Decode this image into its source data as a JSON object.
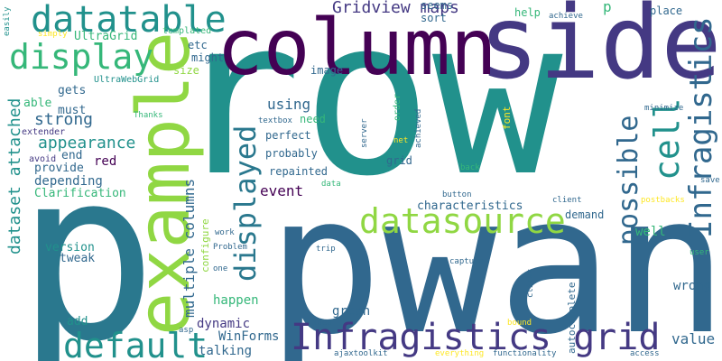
{
  "palette": {
    "dark_purple": "#440154",
    "indigo": "#443983",
    "blue": "#31688e",
    "teal": "#21918c",
    "green": "#35b779",
    "lime": "#90d743",
    "yellow": "#fde725"
  },
  "words": [
    {
      "key": "w-row",
      "text": "row",
      "color": "#21918c"
    },
    {
      "key": "w-p-big",
      "text": "p",
      "color": "#2a788e"
    },
    {
      "key": "w-pwant",
      "text": "pwant",
      "color": "#31688e"
    },
    {
      "key": "w-side",
      "text": "side",
      "color": "#443983"
    },
    {
      "key": "w-column",
      "text": "column",
      "color": "#440154"
    },
    {
      "key": "w-example",
      "text": "example",
      "color": "#90d743"
    },
    {
      "key": "w-datatable",
      "text": "datatable",
      "color": "#21918c"
    },
    {
      "key": "w-display",
      "text": "display",
      "color": "#35b779"
    },
    {
      "key": "w-default",
      "text": "default",
      "color": "#21918c"
    },
    {
      "key": "w-infragistics-grid",
      "text": "Infragistics grid",
      "color": "#443983"
    },
    {
      "key": "w-datasource",
      "text": "datasource",
      "color": "#90d743"
    },
    {
      "key": "w-infragistics-v",
      "text": "Infragistics",
      "color": "#31688e"
    },
    {
      "key": "w-cell",
      "text": "cell",
      "color": "#21918c"
    },
    {
      "key": "w-possible",
      "text": "possible",
      "color": "#31688e"
    },
    {
      "key": "w-displayed",
      "text": "displayed",
      "color": "#2a788e"
    },
    {
      "key": "w-multiple-columns",
      "text": "multiple columns",
      "color": "#31688e"
    },
    {
      "key": "w-dataset-attached",
      "text": "dataset attached",
      "color": "#21918c"
    },
    {
      "key": "w-gridview-maps",
      "text": "Gridview maps",
      "color": "#443983"
    },
    {
      "key": "w-appearance",
      "text": "appearance",
      "color": "#21918c"
    },
    {
      "key": "w-strong",
      "text": "strong",
      "color": "#31688e"
    },
    {
      "key": "w-event",
      "text": "event",
      "color": "#440154"
    },
    {
      "key": "w-using",
      "text": "using",
      "color": "#31688e"
    },
    {
      "key": "w-value",
      "text": "value",
      "color": "#31688e"
    },
    {
      "key": "w-wrong",
      "text": "wrong",
      "color": "#31688e"
    },
    {
      "key": "w-well",
      "text": "well",
      "color": "#35b779"
    },
    {
      "key": "w-demand",
      "text": "demand",
      "color": "#31688e"
    },
    {
      "key": "w-characteristics",
      "text": "characteristics",
      "color": "#31688e"
    },
    {
      "key": "w-green",
      "text": "green",
      "color": "#31688e"
    },
    {
      "key": "w-dynamic",
      "text": "dynamic",
      "color": "#443983"
    },
    {
      "key": "w-winforms",
      "text": "WinForms",
      "color": "#31688e"
    },
    {
      "key": "w-talking",
      "text": "talking",
      "color": "#31688e"
    },
    {
      "key": "w-happen",
      "text": "happen",
      "color": "#35b779"
    },
    {
      "key": "w-configure",
      "text": "configure",
      "color": "#90d743"
    },
    {
      "key": "w-version",
      "text": "version",
      "color": "#21918c"
    },
    {
      "key": "w-tweak",
      "text": "tweak",
      "color": "#31688e"
    },
    {
      "key": "w-add",
      "text": "add",
      "color": "#21918c"
    },
    {
      "key": "w-red",
      "text": "red",
      "color": "#440154"
    },
    {
      "key": "w-depending",
      "text": "depending",
      "color": "#31688e"
    },
    {
      "key": "w-clarification",
      "text": "Clarification",
      "color": "#35b779"
    },
    {
      "key": "w-provide",
      "text": "provide",
      "color": "#31688e"
    },
    {
      "key": "w-end",
      "text": "end",
      "color": "#31688e"
    },
    {
      "key": "w-avoid",
      "text": "avoid",
      "color": "#443983"
    },
    {
      "key": "w-extender",
      "text": "extender",
      "color": "#443983"
    },
    {
      "key": "w-must",
      "text": "must",
      "color": "#31688e"
    },
    {
      "key": "w-gets",
      "text": "gets",
      "color": "#31688e"
    },
    {
      "key": "w-able",
      "text": "able",
      "color": "#35b779"
    },
    {
      "key": "w-ultragrid",
      "text": "UltraGrid",
      "color": "#35b779"
    },
    {
      "key": "w-ultrawebgrid",
      "text": "UltraWebGrid",
      "color": "#21918c"
    },
    {
      "key": "w-simply",
      "text": "simply",
      "color": "#fde725"
    },
    {
      "key": "w-easily",
      "text": "easily",
      "color": "#21918c"
    },
    {
      "key": "w-templated",
      "text": "templated",
      "color": "#35b779"
    },
    {
      "key": "w-etc",
      "text": "etc",
      "color": "#31688e"
    },
    {
      "key": "w-might",
      "text": "might",
      "color": "#31688e"
    },
    {
      "key": "w-size",
      "text": "size",
      "color": "#90d743"
    },
    {
      "key": "w-image",
      "text": "image",
      "color": "#31688e"
    },
    {
      "key": "w-seems",
      "text": "seems",
      "color": "#31688e"
    },
    {
      "key": "w-sort",
      "text": "sort",
      "color": "#31688e"
    },
    {
      "key": "w-help",
      "text": "help",
      "color": "#35b779"
    },
    {
      "key": "w-achieve",
      "text": "achieve",
      "color": "#31688e"
    },
    {
      "key": "w-p-small",
      "text": "p",
      "color": "#35b779"
    },
    {
      "key": "w-place",
      "text": "place",
      "color": "#31688e"
    },
    {
      "key": "w-thanks",
      "text": "Thanks",
      "color": "#35b779"
    },
    {
      "key": "w-need",
      "text": "need",
      "color": "#35b779"
    },
    {
      "key": "w-textbox",
      "text": "textbox",
      "color": "#31688e"
    },
    {
      "key": "w-perfect",
      "text": "perfect",
      "color": "#31688e"
    },
    {
      "key": "w-probably",
      "text": "probably",
      "color": "#31688e"
    },
    {
      "key": "w-repainted",
      "text": "repainted",
      "color": "#31688e"
    },
    {
      "key": "w-grid-small",
      "text": "grid",
      "color": "#31688e"
    },
    {
      "key": "w-order",
      "text": "order",
      "color": "#35b779"
    },
    {
      "key": "w-achieved",
      "text": "achieved",
      "color": "#31688e"
    },
    {
      "key": "w-net",
      "text": "net",
      "color": "#fde725"
    },
    {
      "key": "w-server",
      "text": "server",
      "color": "#31688e"
    },
    {
      "key": "w-font",
      "text": "font",
      "color": "#fde725"
    },
    {
      "key": "w-minimize",
      "text": "minimize",
      "color": "#31688e"
    },
    {
      "key": "w-back",
      "text": "back",
      "color": "#35b779"
    },
    {
      "key": "w-client",
      "text": "client",
      "color": "#31688e"
    },
    {
      "key": "w-button",
      "text": "button",
      "color": "#31688e"
    },
    {
      "key": "w-postbacks",
      "text": "postbacks",
      "color": "#fde725"
    },
    {
      "key": "w-save",
      "text": "save",
      "color": "#31688e"
    },
    {
      "key": "w-data",
      "text": "data",
      "color": "#35b779"
    },
    {
      "key": "w-work",
      "text": "work",
      "color": "#31688e"
    },
    {
      "key": "w-problem",
      "text": "Problem",
      "color": "#31688e"
    },
    {
      "key": "w-one",
      "text": "one",
      "color": "#31688e"
    },
    {
      "key": "w-trip",
      "text": "trip",
      "color": "#31688e"
    },
    {
      "key": "w-capture",
      "text": "capture",
      "color": "#31688e"
    },
    {
      "key": "w-clicks",
      "text": "clicks",
      "color": "#31688e"
    },
    {
      "key": "w-autocomplete",
      "text": "autocomplete",
      "color": "#31688e"
    },
    {
      "key": "w-user",
      "text": "user",
      "color": "#35b779"
    },
    {
      "key": "w-idea",
      "text": "idea",
      "color": "#31688e"
    },
    {
      "key": "w-asp",
      "text": "asp",
      "color": "#31688e"
    },
    {
      "key": "w-ajaxtoolkit",
      "text": "ajaxtoolkit",
      "color": "#31688e"
    },
    {
      "key": "w-bound",
      "text": "bound",
      "color": "#fde725"
    },
    {
      "key": "w-everything",
      "text": "everything",
      "color": "#fde725"
    },
    {
      "key": "w-functionality",
      "text": "functionality",
      "color": "#31688e"
    },
    {
      "key": "w-access",
      "text": "access",
      "color": "#31688e"
    }
  ]
}
